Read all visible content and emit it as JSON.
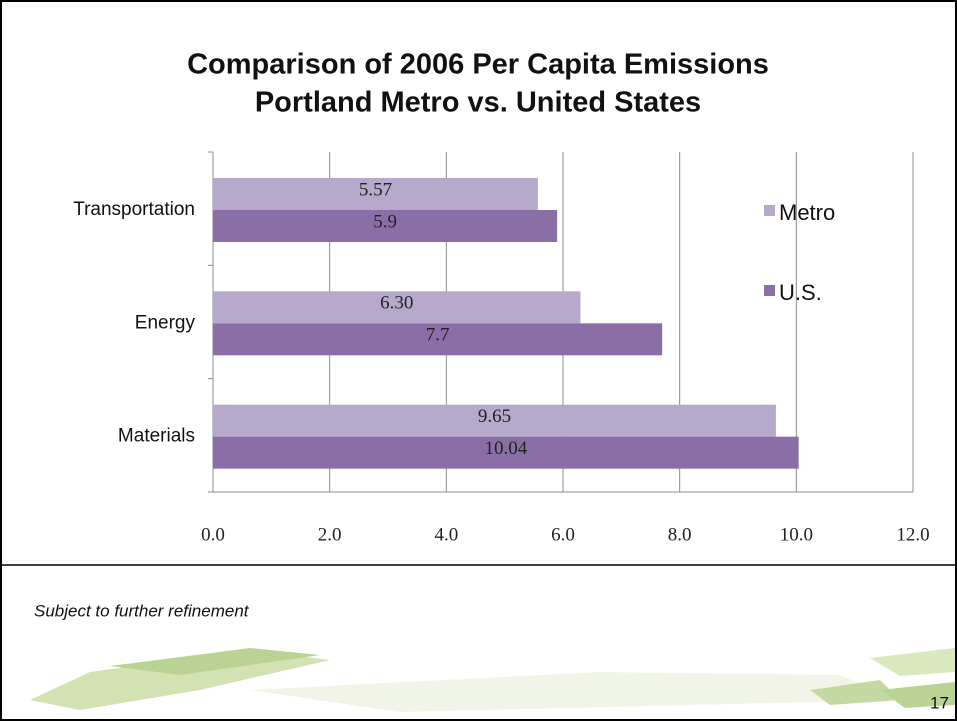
{
  "chart_data": {
    "type": "bar",
    "orientation": "horizontal",
    "title": "Comparison of 2006 Per Capita Emissions",
    "subtitle": "Portland Metro vs. United States",
    "categories": [
      "Transportation",
      "Energy",
      "Materials"
    ],
    "series": [
      {
        "name": "Metro",
        "color": "#b7a9cc",
        "values": [
          5.57,
          6.3,
          9.65
        ],
        "value_labels": [
          "5.57",
          "6.30",
          "9.65"
        ]
      },
      {
        "name": "U.S.",
        "color": "#8a6fa6",
        "values": [
          5.9,
          7.7,
          10.04
        ]
      }
    ],
    "xlim": [
      0,
      12
    ],
    "xticks": [
      {
        "value": 0,
        "label": "0.0"
      },
      {
        "value": 2,
        "label": "2.0"
      },
      {
        "value": 4,
        "label": "4.0"
      },
      {
        "value": 6,
        "label": "6.0"
      },
      {
        "value": 8,
        "label": "8.0"
      },
      {
        "value": 10,
        "label": "10.0"
      },
      {
        "value": 12,
        "label": "12.0"
      }
    ],
    "grid": true,
    "legend": "right"
  },
  "footnote": "Subject to further refinement",
  "page_number": "17"
}
